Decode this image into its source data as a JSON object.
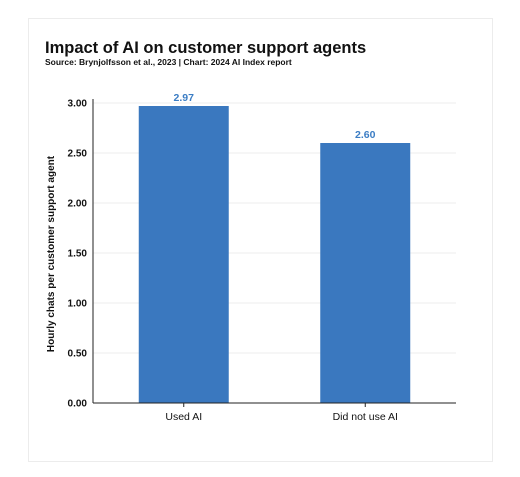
{
  "chart_data": {
    "type": "bar",
    "title": "Impact of AI on customer support agents",
    "subtitle": "Source: Brynjolfsson et al., 2023 | Chart: 2024 AI Index report",
    "xlabel": "",
    "ylabel": "Hourly chats per customer support agent",
    "categories": [
      "Used AI",
      "Did not use AI"
    ],
    "values": [
      2.97,
      2.6
    ],
    "data_labels": [
      "2.97",
      "2.60"
    ],
    "ylim": [
      0,
      3.0
    ],
    "yticks": [
      "0.00",
      "0.50",
      "1.00",
      "1.50",
      "2.00",
      "2.50",
      "3.00"
    ],
    "grid": true,
    "legend": "none",
    "colors": {
      "bar": "#3a78bf",
      "data_label": "#3b7dc4"
    }
  }
}
